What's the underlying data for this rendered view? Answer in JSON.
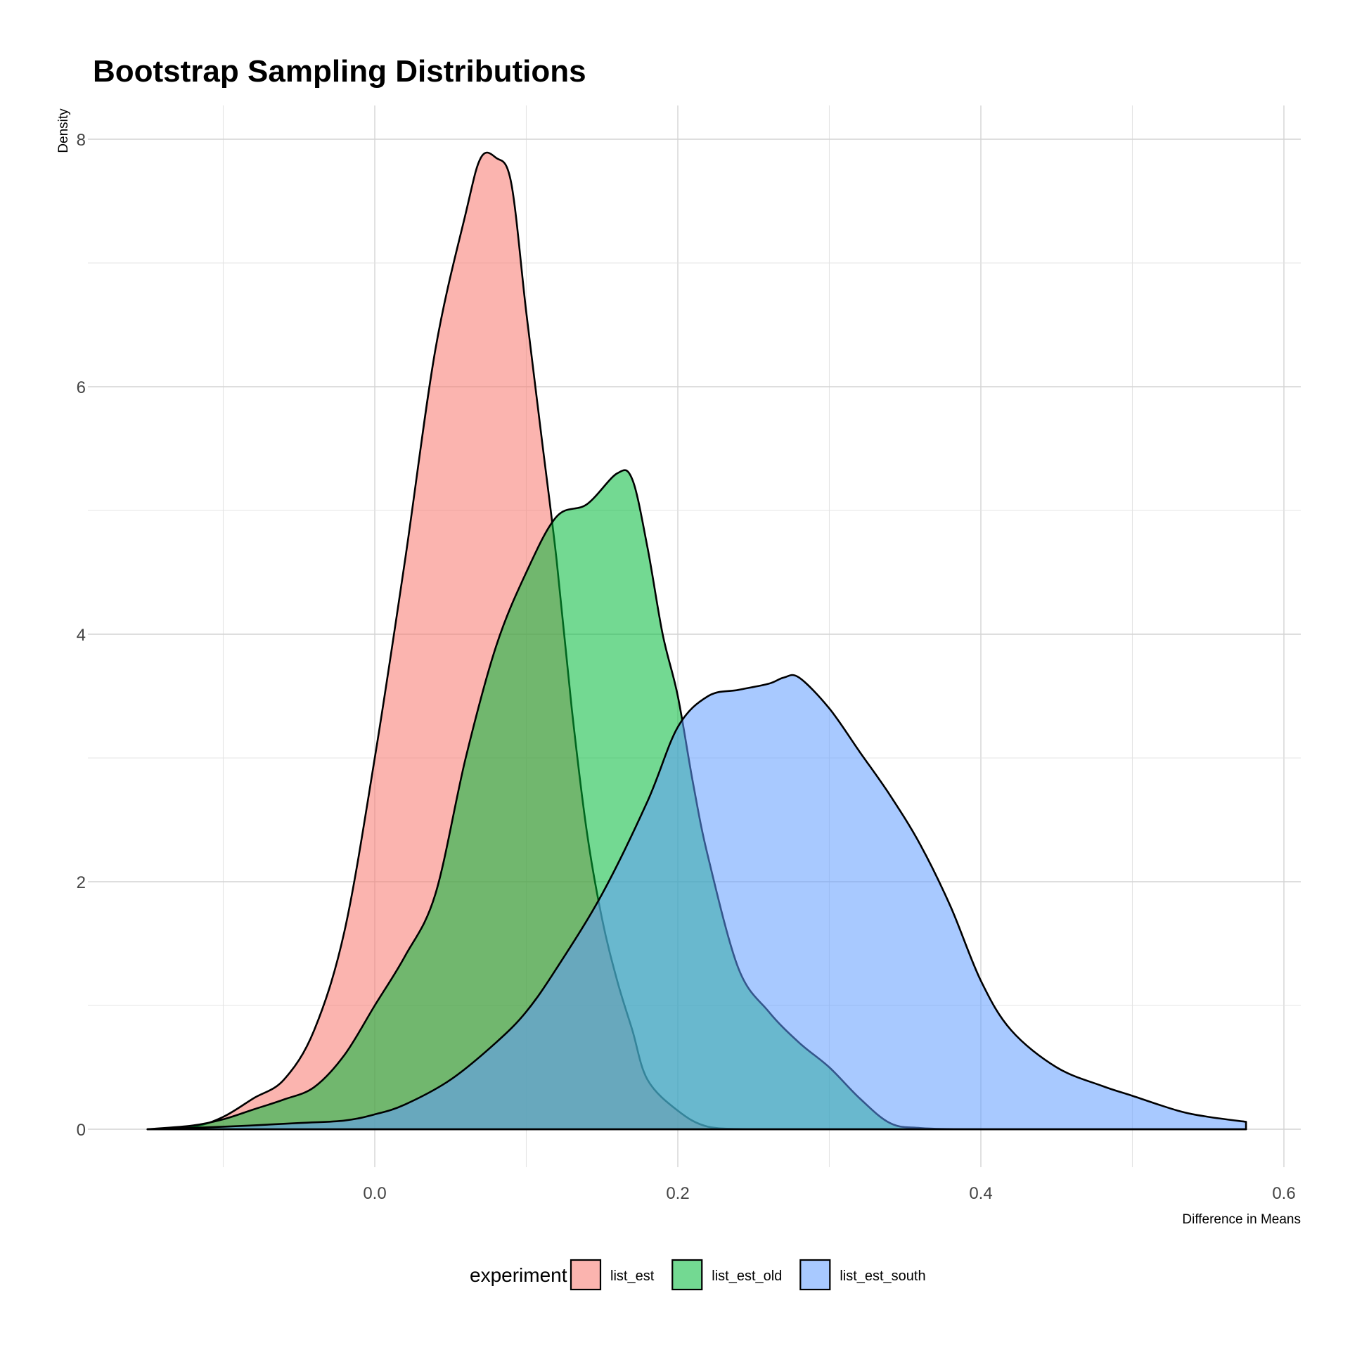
{
  "chart_data": {
    "type": "area",
    "title": "Bootstrap Sampling Distributions",
    "xlabel": "Difference in Means",
    "ylabel": "Density",
    "xlim": [
      -0.14,
      0.6
    ],
    "ylim": [
      0,
      8.2
    ],
    "x_ticks": [
      0.0,
      0.2,
      0.4,
      0.6
    ],
    "x_tick_labels": [
      "0.0",
      "0.2",
      "0.4",
      "0.6"
    ],
    "y_ticks": [
      0,
      2,
      4,
      6,
      8
    ],
    "y_tick_labels": [
      "0",
      "2",
      "4",
      "6",
      "8"
    ],
    "grid": true,
    "legend": {
      "title": "experiment",
      "position": "bottom"
    },
    "series": [
      {
        "name": "list_est",
        "color": "#F8766D",
        "points": [
          [
            -0.15,
            0.0
          ],
          [
            -0.12,
            0.02
          ],
          [
            -0.1,
            0.1
          ],
          [
            -0.08,
            0.25
          ],
          [
            -0.06,
            0.4
          ],
          [
            -0.04,
            0.8
          ],
          [
            -0.02,
            1.6
          ],
          [
            0.0,
            3.0
          ],
          [
            0.02,
            4.6
          ],
          [
            0.04,
            6.3
          ],
          [
            0.06,
            7.4
          ],
          [
            0.07,
            7.85
          ],
          [
            0.08,
            7.85
          ],
          [
            0.09,
            7.65
          ],
          [
            0.1,
            6.6
          ],
          [
            0.11,
            5.6
          ],
          [
            0.12,
            4.6
          ],
          [
            0.13,
            3.4
          ],
          [
            0.14,
            2.4
          ],
          [
            0.15,
            1.7
          ],
          [
            0.16,
            1.2
          ],
          [
            0.17,
            0.8
          ],
          [
            0.18,
            0.4
          ],
          [
            0.2,
            0.15
          ],
          [
            0.22,
            0.02
          ],
          [
            0.25,
            0.0
          ],
          [
            0.3,
            0.0
          ],
          [
            0.35,
            0.0
          ],
          [
            0.4,
            0.0
          ],
          [
            0.5,
            0.0
          ],
          [
            0.575,
            0.0
          ]
        ]
      },
      {
        "name": "list_est_old",
        "color": "#00BA38",
        "points": [
          [
            -0.15,
            0.0
          ],
          [
            -0.12,
            0.03
          ],
          [
            -0.1,
            0.08
          ],
          [
            -0.08,
            0.16
          ],
          [
            -0.06,
            0.24
          ],
          [
            -0.04,
            0.34
          ],
          [
            -0.02,
            0.6
          ],
          [
            0.0,
            1.0
          ],
          [
            0.02,
            1.4
          ],
          [
            0.04,
            1.9
          ],
          [
            0.06,
            3.0
          ],
          [
            0.08,
            3.9
          ],
          [
            0.1,
            4.5
          ],
          [
            0.12,
            4.95
          ],
          [
            0.14,
            5.05
          ],
          [
            0.16,
            5.3
          ],
          [
            0.17,
            5.25
          ],
          [
            0.18,
            4.7
          ],
          [
            0.19,
            4.0
          ],
          [
            0.2,
            3.5
          ],
          [
            0.21,
            2.8
          ],
          [
            0.22,
            2.2
          ],
          [
            0.24,
            1.3
          ],
          [
            0.26,
            0.95
          ],
          [
            0.28,
            0.7
          ],
          [
            0.3,
            0.5
          ],
          [
            0.32,
            0.25
          ],
          [
            0.34,
            0.05
          ],
          [
            0.36,
            0.01
          ],
          [
            0.4,
            0.0
          ],
          [
            0.5,
            0.0
          ],
          [
            0.575,
            0.0
          ]
        ]
      },
      {
        "name": "list_est_south",
        "color": "#619CFF",
        "points": [
          [
            -0.15,
            0.0
          ],
          [
            -0.1,
            0.02
          ],
          [
            -0.05,
            0.05
          ],
          [
            -0.02,
            0.07
          ],
          [
            0.0,
            0.12
          ],
          [
            0.02,
            0.2
          ],
          [
            0.05,
            0.4
          ],
          [
            0.08,
            0.7
          ],
          [
            0.1,
            0.95
          ],
          [
            0.12,
            1.3
          ],
          [
            0.15,
            1.9
          ],
          [
            0.18,
            2.65
          ],
          [
            0.2,
            3.25
          ],
          [
            0.22,
            3.5
          ],
          [
            0.24,
            3.55
          ],
          [
            0.26,
            3.6
          ],
          [
            0.27,
            3.65
          ],
          [
            0.28,
            3.65
          ],
          [
            0.3,
            3.4
          ],
          [
            0.32,
            3.05
          ],
          [
            0.34,
            2.7
          ],
          [
            0.36,
            2.3
          ],
          [
            0.38,
            1.8
          ],
          [
            0.4,
            1.2
          ],
          [
            0.42,
            0.8
          ],
          [
            0.45,
            0.5
          ],
          [
            0.48,
            0.35
          ],
          [
            0.5,
            0.27
          ],
          [
            0.53,
            0.15
          ],
          [
            0.55,
            0.1
          ],
          [
            0.575,
            0.06
          ]
        ]
      }
    ]
  }
}
